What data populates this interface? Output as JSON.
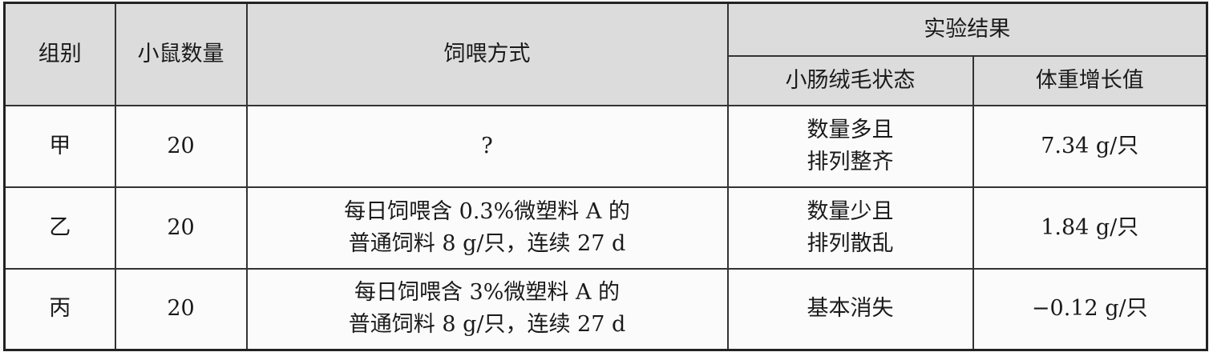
{
  "table": {
    "headers": {
      "group": "组别",
      "mouse_count": "小鼠数量",
      "feeding": "饲喂方式",
      "results": "实验结果",
      "villi": "小肠绒毛状态",
      "weight_gain": "体重增长值"
    },
    "rows": [
      {
        "group": "甲",
        "count": "20",
        "feeding_1": "?",
        "feeding_2": "",
        "villi_1": "数量多且",
        "villi_2": "排列整齐",
        "weight": "7.34 g/只"
      },
      {
        "group": "乙",
        "count": "20",
        "feeding_1": "每日饲喂含 0.3%微塑料 A 的",
        "feeding_2": "普通饲料 8 g/只，连续 27 d",
        "villi_1": "数量少且",
        "villi_2": "排列散乱",
        "weight": "1.84 g/只"
      },
      {
        "group": "丙",
        "count": "20",
        "feeding_1": "每日饲喂含 3%微塑料 A 的",
        "feeding_2": "普通饲料 8 g/只，连续 27 d",
        "villi_1": "基本消失",
        "villi_2": "",
        "weight": "−0.12 g/只"
      }
    ]
  }
}
